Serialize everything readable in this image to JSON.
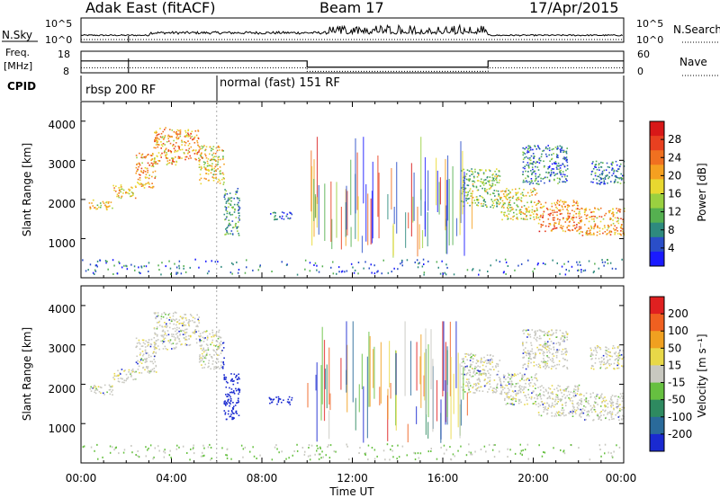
{
  "header": {
    "station": "Adak East (fitACF)",
    "beam": "Beam 17",
    "date": "17/Apr/2015"
  },
  "noise_panel": {
    "left_label": "N.Sky",
    "right_label": "N.Search",
    "left_ticks": [
      "10^5",
      "10^0"
    ],
    "right_ticks": [
      "10^5",
      "10^0"
    ]
  },
  "freq_panel": {
    "left_label_1": "Freq.",
    "left_label_2": "[MHz]",
    "right_label": "Nave",
    "left_ticks": [
      "18",
      "8"
    ],
    "right_ticks": [
      "60",
      "0"
    ],
    "freq_segments": [
      {
        "start": 0,
        "end": 10,
        "value": 13.5
      },
      {
        "start": 10,
        "end": 18,
        "value": 10.6
      },
      {
        "start": 18,
        "end": 24,
        "value": 13.5
      }
    ],
    "nave_segments": [
      {
        "start": 0,
        "end": 10,
        "value": 14
      },
      {
        "start": 10,
        "end": 18,
        "value": 4
      },
      {
        "start": 18,
        "end": 24,
        "value": 14
      }
    ]
  },
  "cpid": {
    "label": "CPID",
    "modes": [
      {
        "start": 0,
        "label": "rbsp 200 RF"
      },
      {
        "start": 6,
        "label": "normal (fast) 151 RF"
      }
    ]
  },
  "x_axis": {
    "title": "Time UT",
    "ticks": [
      "00:00",
      "04:00",
      "08:00",
      "12:00",
      "16:00",
      "20:00",
      "00:00"
    ]
  },
  "power_panel": {
    "ylabel": "Slant Range [km]",
    "yticks": [
      "1000",
      "2000",
      "3000",
      "4000"
    ],
    "colorbar_label": "Power [dB]",
    "colorbar_ticks": [
      "4",
      "8",
      "12",
      "16",
      "20",
      "24",
      "28"
    ],
    "colors": [
      "#1a1aff",
      "#2a4ec8",
      "#2e8a7e",
      "#55b050",
      "#9ad040",
      "#e8d830",
      "#f5a020",
      "#f07020",
      "#e84020",
      "#d81818"
    ]
  },
  "velocity_panel": {
    "ylabel": "Slant Range [km]",
    "yticks": [
      "1000",
      "2000",
      "3000",
      "4000"
    ],
    "colorbar_label": "Velocity [m s⁻¹]",
    "colorbar_ticks": [
      "200",
      "100",
      "50",
      "15",
      "-15",
      "-50",
      "-100",
      "-200"
    ],
    "colors": [
      "#1a2ad0",
      "#2a6a9a",
      "#2e8a60",
      "#66c040",
      "#c8c8c0",
      "#e8d848",
      "#f0a020",
      "#f06020",
      "#e02020"
    ]
  },
  "chart_data": {
    "type": "heatmap",
    "x_unit": "hours UT",
    "xlim": [
      0,
      24
    ],
    "ylim": [
      0,
      4500
    ],
    "y_unit": "km",
    "scatter_regions": [
      {
        "t0": 0.3,
        "t1": 1.4,
        "r0": 1750,
        "r1": 2000,
        "p": 18
      },
      {
        "t0": 1.4,
        "t1": 2.4,
        "r0": 2050,
        "r1": 2400,
        "p": 20
      },
      {
        "t0": 2.4,
        "t1": 3.3,
        "r0": 2300,
        "r1": 3200,
        "p": 22
      },
      {
        "t0": 3.2,
        "t1": 4.2,
        "r0": 2900,
        "r1": 3850,
        "p": 22
      },
      {
        "t0": 4.2,
        "t1": 5.2,
        "r0": 3000,
        "r1": 3800,
        "p": 22
      },
      {
        "t0": 5.2,
        "t1": 6.3,
        "r0": 2400,
        "r1": 3400,
        "p": 18
      },
      {
        "t0": 6.3,
        "t1": 7.0,
        "r0": 1100,
        "r1": 2300,
        "p": 10
      },
      {
        "t0": 8.2,
        "t1": 9.3,
        "r0": 1500,
        "r1": 1700,
        "p": 6
      },
      {
        "t0": 16.8,
        "t1": 18.5,
        "r0": 1800,
        "r1": 2800,
        "p": 14
      },
      {
        "t0": 18.5,
        "t1": 20.2,
        "r0": 1500,
        "r1": 2300,
        "p": 18
      },
      {
        "t0": 20.2,
        "t1": 22.0,
        "r0": 1200,
        "r1": 2000,
        "p": 24
      },
      {
        "t0": 22.0,
        "t1": 24.0,
        "r0": 1100,
        "r1": 1800,
        "p": 22
      },
      {
        "t0": 19.5,
        "t1": 21.5,
        "r0": 2400,
        "r1": 3400,
        "p": 8
      },
      {
        "t0": 22.5,
        "t1": 24.0,
        "r0": 2400,
        "r1": 3000,
        "p": 8
      }
    ],
    "noise_description": "noise sky and search vs time"
  }
}
